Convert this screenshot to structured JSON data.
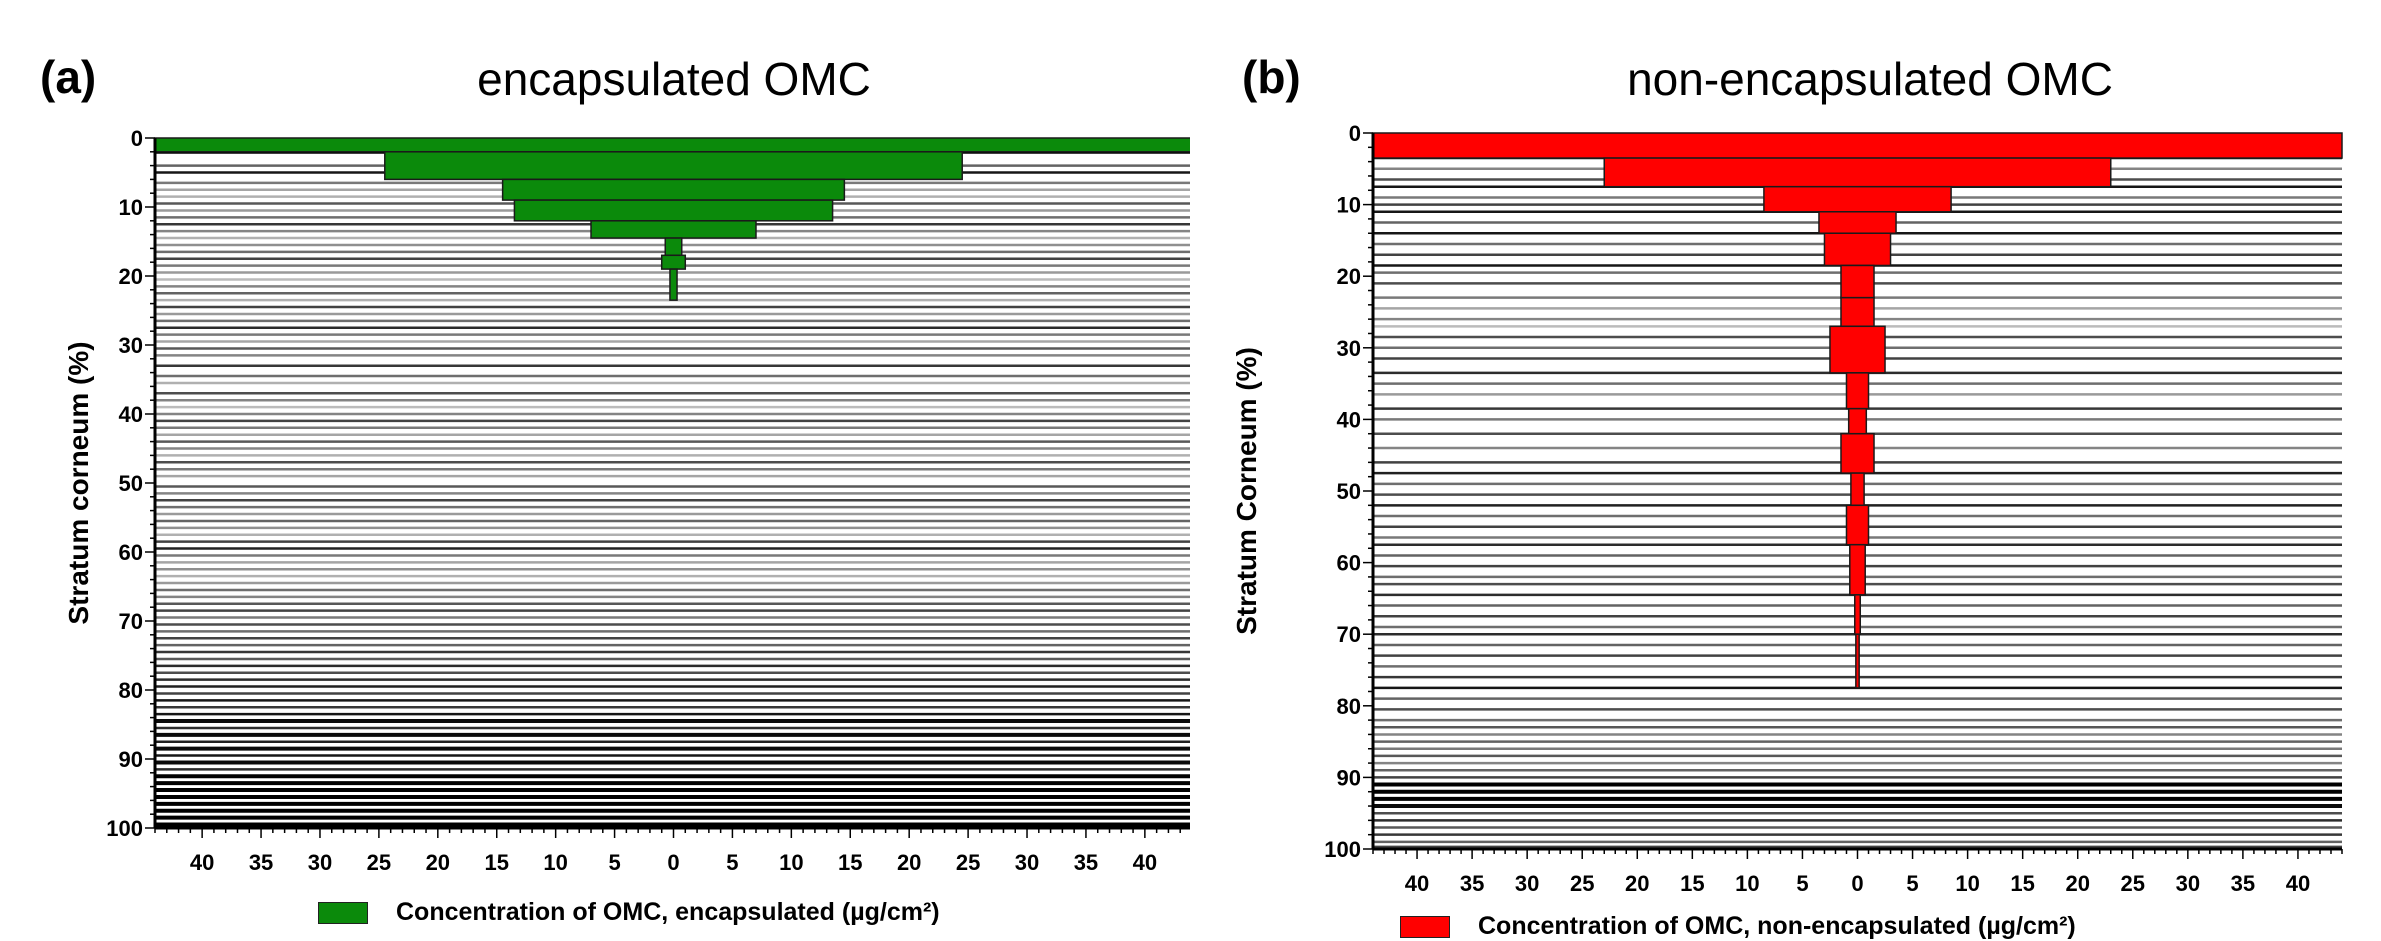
{
  "colors": {
    "green": "#0b8a0b",
    "red": "#ff0000"
  },
  "chart_data": [
    {
      "type": "bar",
      "orientation": "horizontal-symmetric",
      "panel_label": "(a)",
      "title": "encapsulated OMC",
      "ylabel": "Stratum corneum (%)",
      "legend": "Concentration of OMC, encapsulated (µg/cm²)",
      "color": "#0b8a0b",
      "xlim": [
        -44,
        44
      ],
      "ylim": [
        0,
        100
      ],
      "xticks": [
        -40,
        -35,
        -30,
        -25,
        -20,
        -15,
        -10,
        -5,
        0,
        5,
        10,
        15,
        20,
        25,
        30,
        35,
        40
      ],
      "xtick_labels": [
        "40",
        "35",
        "30",
        "25",
        "20",
        "15",
        "10",
        "5",
        "0",
        "5",
        "10",
        "15",
        "20",
        "25",
        "30",
        "35",
        "40"
      ],
      "yticks": [
        0,
        10,
        20,
        30,
        40,
        50,
        60,
        70,
        80,
        90,
        100
      ],
      "ytick_labels": [
        "0",
        "10",
        "20",
        "30",
        "40",
        "50",
        "60",
        "70",
        "80",
        "90",
        "100"
      ],
      "bars": [
        {
          "y0": 0,
          "y1": 2,
          "value": 44
        },
        {
          "y0": 2,
          "y1": 6,
          "value": 24.5
        },
        {
          "y0": 6,
          "y1": 9,
          "value": 14.5
        },
        {
          "y0": 9,
          "y1": 12,
          "value": 13.5
        },
        {
          "y0": 12,
          "y1": 14.5,
          "value": 7
        },
        {
          "y0": 14.5,
          "y1": 17,
          "value": 0.7
        },
        {
          "y0": 17,
          "y1": 19,
          "value": 1
        },
        {
          "y0": 19,
          "y1": 23.5,
          "value": 0.3
        }
      ],
      "strata": [
        {
          "y": 0.5,
          "shade": 0.0
        },
        {
          "y": 2,
          "shade": 0.0
        },
        {
          "y": 4,
          "shade": 0.45
        },
        {
          "y": 5,
          "shade": 0.1
        },
        {
          "y": 6.5,
          "shade": 0.55
        },
        {
          "y": 7.5,
          "shade": 0.75
        },
        {
          "y": 8.5,
          "shade": 0.8
        },
        {
          "y": 9.5,
          "shade": 0.4
        },
        {
          "y": 10.5,
          "shade": 0.7
        },
        {
          "y": 11.5,
          "shade": 0.5
        },
        {
          "y": 12.5,
          "shade": 0.25
        },
        {
          "y": 13.5,
          "shade": 0.6
        },
        {
          "y": 14.5,
          "shade": 0.8
        },
        {
          "y": 15.5,
          "shade": 0.65
        },
        {
          "y": 16.5,
          "shade": 0.5
        },
        {
          "y": 17.5,
          "shade": 0.3
        },
        {
          "y": 18.5,
          "shade": 0.55
        },
        {
          "y": 19.5,
          "shade": 0.7
        },
        {
          "y": 20.5,
          "shade": 0.85
        },
        {
          "y": 21.5,
          "shade": 0.6
        },
        {
          "y": 22.5,
          "shade": 0.45
        },
        {
          "y": 23.5,
          "shade": 0.8
        },
        {
          "y": 24.5,
          "shade": 0.3
        },
        {
          "y": 25.5,
          "shade": 0.7
        },
        {
          "y": 26.5,
          "shade": 0.5
        },
        {
          "y": 27.5,
          "shade": 0.2
        },
        {
          "y": 28.5,
          "shade": 0.55
        },
        {
          "y": 29.5,
          "shade": 0.75
        },
        {
          "y": 30.5,
          "shade": 0.4
        },
        {
          "y": 31.5,
          "shade": 0.6
        },
        {
          "y": 33,
          "shade": 0.25
        },
        {
          "y": 34.5,
          "shade": 0.5
        },
        {
          "y": 35.5,
          "shade": 0.8
        },
        {
          "y": 37,
          "shade": 0.35
        },
        {
          "y": 38,
          "shade": 0.6
        },
        {
          "y": 39,
          "shade": 0.85
        },
        {
          "y": 40,
          "shade": 0.6
        },
        {
          "y": 41,
          "shade": 0.3
        },
        {
          "y": 42,
          "shade": 0.55
        },
        {
          "y": 43,
          "shade": 0.75
        },
        {
          "y": 44,
          "shade": 0.4
        },
        {
          "y": 45,
          "shade": 0.6
        },
        {
          "y": 46,
          "shade": 0.8
        },
        {
          "y": 47,
          "shade": 0.35
        },
        {
          "y": 48,
          "shade": 0.55
        },
        {
          "y": 49,
          "shade": 0.75
        },
        {
          "y": 50.5,
          "shade": 0.4
        },
        {
          "y": 51.5,
          "shade": 0.6
        },
        {
          "y": 52.5,
          "shade": 0.3
        },
        {
          "y": 53.5,
          "shade": 0.5
        },
        {
          "y": 54.5,
          "shade": 0.7
        },
        {
          "y": 55.5,
          "shade": 0.45
        },
        {
          "y": 56.5,
          "shade": 0.65
        },
        {
          "y": 57.5,
          "shade": 0.8
        },
        {
          "y": 58.5,
          "shade": 0.3
        },
        {
          "y": 59.5,
          "shade": 0.15
        },
        {
          "y": 60.5,
          "shade": 0.55
        },
        {
          "y": 61.5,
          "shade": 0.75
        },
        {
          "y": 62.5,
          "shade": 0.65
        },
        {
          "y": 63.5,
          "shade": 0.8
        },
        {
          "y": 64.5,
          "shade": 0.7
        },
        {
          "y": 65.5,
          "shade": 0.5
        },
        {
          "y": 66.5,
          "shade": 0.6
        },
        {
          "y": 67.5,
          "shade": 0.4
        },
        {
          "y": 68.5,
          "shade": 0.3
        },
        {
          "y": 69.5,
          "shade": 0.55
        },
        {
          "y": 70.5,
          "shade": 0.35
        },
        {
          "y": 71.5,
          "shade": 0.5
        },
        {
          "y": 72.5,
          "shade": 0.3
        },
        {
          "y": 73.5,
          "shade": 0.45
        },
        {
          "y": 74.5,
          "shade": 0.25
        },
        {
          "y": 75.5,
          "shade": 0.4
        },
        {
          "y": 76.5,
          "shade": 0.2
        },
        {
          "y": 77.5,
          "shade": 0.35
        },
        {
          "y": 78.5,
          "shade": 0.2
        },
        {
          "y": 79.5,
          "shade": 0.15
        },
        {
          "y": 80.5,
          "shade": 0.3
        },
        {
          "y": 81.5,
          "shade": 0.1
        },
        {
          "y": 82.5,
          "shade": 0.25
        },
        {
          "y": 83.5,
          "shade": 0.1
        },
        {
          "y": 84.5,
          "shade": 0.05
        },
        {
          "y": 85.5,
          "shade": 0.2
        },
        {
          "y": 86.5,
          "shade": 0.05
        },
        {
          "y": 87.5,
          "shade": 0.15
        },
        {
          "y": 88.5,
          "shade": 0.05
        },
        {
          "y": 89.5,
          "shade": 0.1
        },
        {
          "y": 90.5,
          "shade": 0.05
        },
        {
          "y": 91.5,
          "shade": 0.2
        },
        {
          "y": 92.5,
          "shade": 0.0
        },
        {
          "y": 93.5,
          "shade": 0.0
        },
        {
          "y": 94.5,
          "shade": 0.0
        },
        {
          "y": 95.5,
          "shade": 0.0
        },
        {
          "y": 96.5,
          "shade": 0.0
        },
        {
          "y": 97.5,
          "shade": 0.0
        },
        {
          "y": 98.5,
          "shade": 0.0
        },
        {
          "y": 99.5,
          "shade": 0.0
        }
      ]
    },
    {
      "type": "bar",
      "orientation": "horizontal-symmetric",
      "panel_label": "(b)",
      "title": "non-encapsulated OMC",
      "ylabel": "Stratum Corneum (%)",
      "legend": "Concentration of OMC, non-encapsulated (µg/cm²)",
      "color": "#ff0000",
      "xlim": [
        -44,
        44
      ],
      "ylim": [
        0,
        100
      ],
      "xticks": [
        -40,
        -35,
        -30,
        -25,
        -20,
        -15,
        -10,
        -5,
        0,
        5,
        10,
        15,
        20,
        25,
        30,
        35,
        40
      ],
      "xtick_labels": [
        "40",
        "35",
        "30",
        "25",
        "20",
        "15",
        "10",
        "5",
        "0",
        "5",
        "10",
        "15",
        "20",
        "25",
        "30",
        "35",
        "40"
      ],
      "yticks": [
        0,
        10,
        20,
        30,
        40,
        50,
        60,
        70,
        80,
        90,
        100
      ],
      "ytick_labels": [
        "0",
        "10",
        "20",
        "30",
        "40",
        "50",
        "60",
        "70",
        "80",
        "90",
        "100"
      ],
      "bars": [
        {
          "y0": 0,
          "y1": 3.5,
          "value": 44
        },
        {
          "y0": 3.5,
          "y1": 7.5,
          "value": 23
        },
        {
          "y0": 7.5,
          "y1": 11,
          "value": 8.5
        },
        {
          "y0": 11,
          "y1": 14,
          "value": 3.5
        },
        {
          "y0": 14,
          "y1": 18.5,
          "value": 3
        },
        {
          "y0": 18.5,
          "y1": 23,
          "value": 1.5
        },
        {
          "y0": 23,
          "y1": 27,
          "value": 1.5
        },
        {
          "y0": 27,
          "y1": 33.5,
          "value": 2.5
        },
        {
          "y0": 33.5,
          "y1": 38.5,
          "value": 1
        },
        {
          "y0": 38.5,
          "y1": 42,
          "value": 0.8
        },
        {
          "y0": 42,
          "y1": 47.5,
          "value": 1.5
        },
        {
          "y0": 47.5,
          "y1": 52,
          "value": 0.6
        },
        {
          "y0": 52,
          "y1": 57.5,
          "value": 1
        },
        {
          "y0": 57.5,
          "y1": 64.5,
          "value": 0.7
        },
        {
          "y0": 64.5,
          "y1": 70,
          "value": 0.25
        },
        {
          "y0": 70,
          "y1": 77.5,
          "value": 0.15
        }
      ],
      "strata": [
        {
          "y": 3.5,
          "shade": 0.1
        },
        {
          "y": 5,
          "shade": 0.6
        },
        {
          "y": 6.5,
          "shade": 0.35
        },
        {
          "y": 7.5,
          "shade": 0.1
        },
        {
          "y": 9,
          "shade": 0.55
        },
        {
          "y": 10,
          "shade": 0.3
        },
        {
          "y": 11,
          "shade": 0.1
        },
        {
          "y": 12.5,
          "shade": 0.45
        },
        {
          "y": 14,
          "shade": 0.1
        },
        {
          "y": 15.5,
          "shade": 0.5
        },
        {
          "y": 17,
          "shade": 0.3
        },
        {
          "y": 18.5,
          "shade": 0.1
        },
        {
          "y": 19.5,
          "shade": 0.5
        },
        {
          "y": 21,
          "shade": 0.35
        },
        {
          "y": 23,
          "shade": 0.55
        },
        {
          "y": 24.5,
          "shade": 0.75
        },
        {
          "y": 26,
          "shade": 0.6
        },
        {
          "y": 27,
          "shade": 0.85
        },
        {
          "y": 28.5,
          "shade": 0.35
        },
        {
          "y": 30,
          "shade": 0.5
        },
        {
          "y": 31.5,
          "shade": 0.3
        },
        {
          "y": 33.5,
          "shade": 0.2
        },
        {
          "y": 35,
          "shade": 0.5
        },
        {
          "y": 36.5,
          "shade": 0.7
        },
        {
          "y": 38.5,
          "shade": 0.25
        },
        {
          "y": 40,
          "shade": 0.55
        },
        {
          "y": 42,
          "shade": 0.35
        },
        {
          "y": 44,
          "shade": 0.6
        },
        {
          "y": 46,
          "shade": 0.3
        },
        {
          "y": 47.5,
          "shade": 0.15
        },
        {
          "y": 49,
          "shade": 0.5
        },
        {
          "y": 50.5,
          "shade": 0.35
        },
        {
          "y": 52,
          "shade": 0.15
        },
        {
          "y": 53.5,
          "shade": 0.5
        },
        {
          "y": 55,
          "shade": 0.3
        },
        {
          "y": 56.5,
          "shade": 0.55
        },
        {
          "y": 57.5,
          "shade": 0.2
        },
        {
          "y": 59,
          "shade": 0.45
        },
        {
          "y": 60.5,
          "shade": 0.3
        },
        {
          "y": 62,
          "shade": 0.5
        },
        {
          "y": 63,
          "shade": 0.35
        },
        {
          "y": 64.5,
          "shade": 0.2
        },
        {
          "y": 66,
          "shade": 0.45
        },
        {
          "y": 67.5,
          "shade": 0.3
        },
        {
          "y": 69,
          "shade": 0.5
        },
        {
          "y": 70,
          "shade": 0.2
        },
        {
          "y": 71.5,
          "shade": 0.45
        },
        {
          "y": 73,
          "shade": 0.3
        },
        {
          "y": 74.5,
          "shade": 0.5
        },
        {
          "y": 76,
          "shade": 0.25
        },
        {
          "y": 77.5,
          "shade": 0.1
        },
        {
          "y": 79,
          "shade": 0.45
        },
        {
          "y": 80.5,
          "shade": 0.35
        },
        {
          "y": 82,
          "shade": 0.5
        },
        {
          "y": 83,
          "shade": 0.4
        },
        {
          "y": 84,
          "shade": 0.6
        },
        {
          "y": 85,
          "shade": 0.45
        },
        {
          "y": 86,
          "shade": 0.55
        },
        {
          "y": 87,
          "shade": 0.4
        },
        {
          "y": 88,
          "shade": 0.6
        },
        {
          "y": 89,
          "shade": 0.45
        },
        {
          "y": 90,
          "shade": 0.3
        },
        {
          "y": 91,
          "shade": 0.0
        },
        {
          "y": 92,
          "shade": 0.0
        },
        {
          "y": 93,
          "shade": 0.0
        },
        {
          "y": 94,
          "shade": 0.05
        },
        {
          "y": 95,
          "shade": 0.35
        },
        {
          "y": 96,
          "shade": 0.2
        },
        {
          "y": 97,
          "shade": 0.4
        },
        {
          "y": 98,
          "shade": 0.25
        },
        {
          "y": 99,
          "shade": 0.45
        },
        {
          "y": 99.7,
          "shade": 0.3
        }
      ]
    }
  ]
}
